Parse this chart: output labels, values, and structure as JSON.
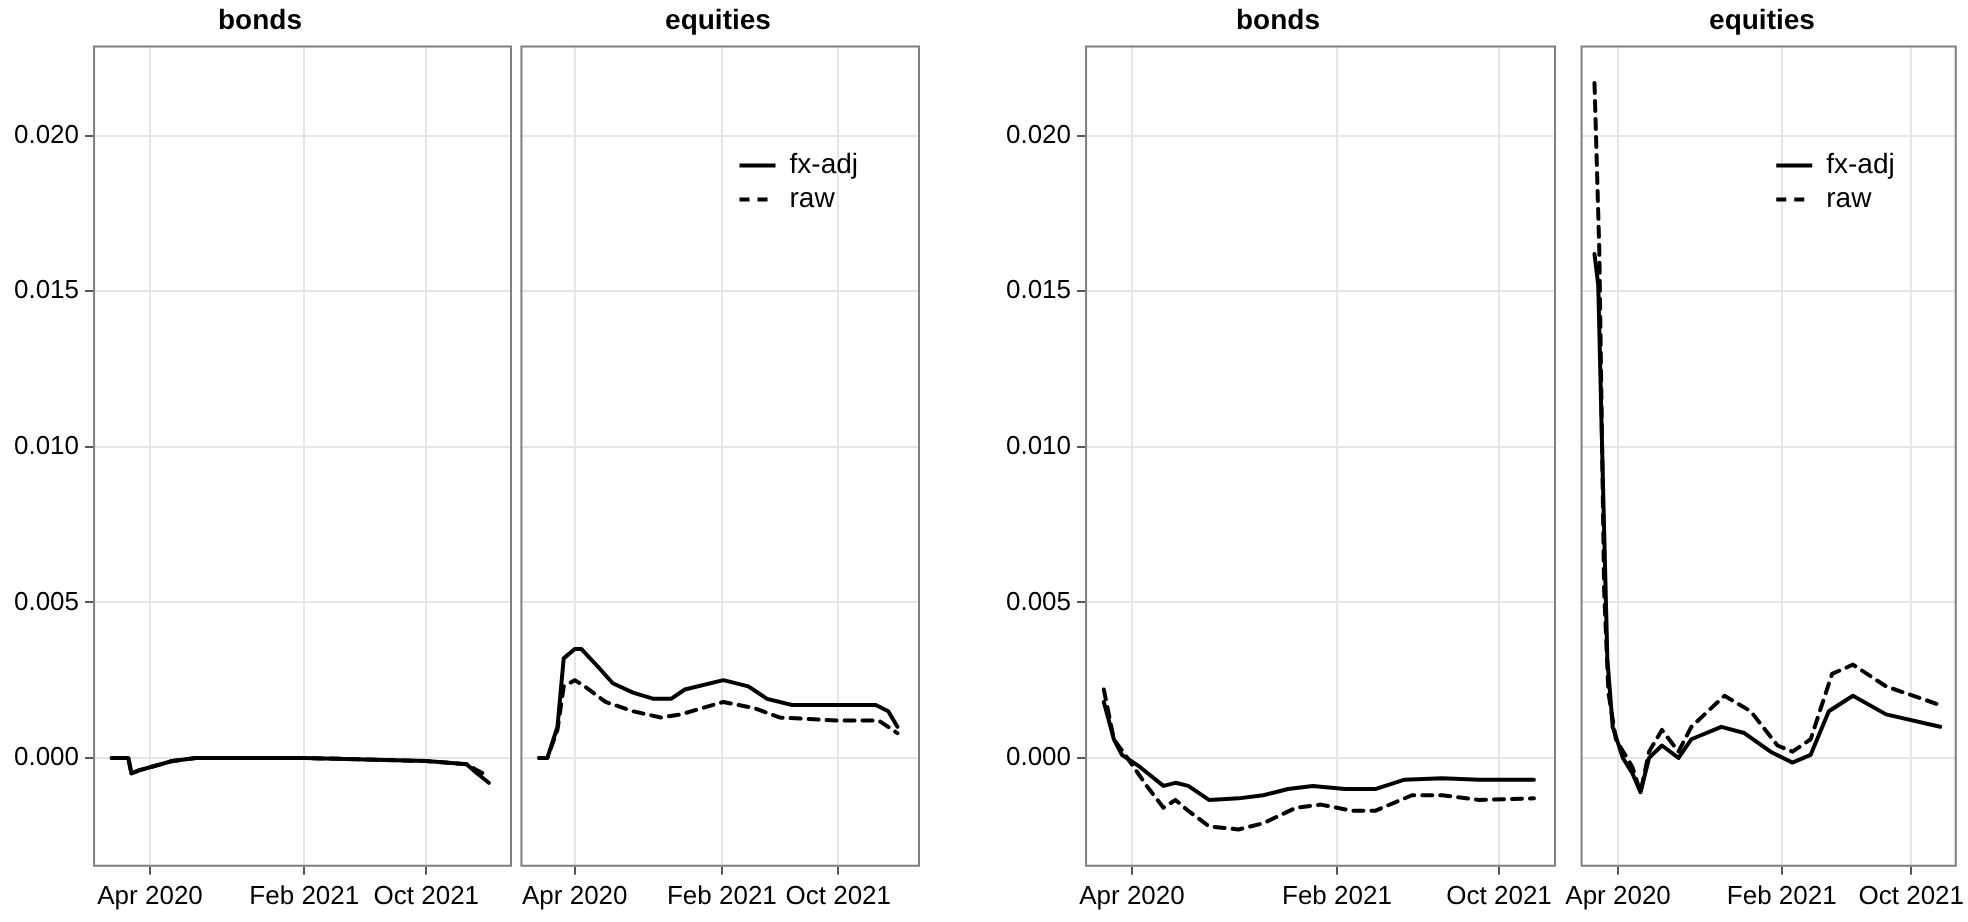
{
  "chart_data": [
    {
      "type": "line",
      "title": "bonds",
      "xlim": [
        "2019-12-10",
        "2022-03-20"
      ],
      "xticks": [
        {
          "value": "2020-04-01",
          "label": "Apr 2020"
        },
        {
          "value": "2021-02-01",
          "label": "Feb 2021"
        },
        {
          "value": "2021-10-01",
          "label": "Oct 2021"
        }
      ],
      "ylim": [
        -0.0035,
        0.0229
      ],
      "yticks": [
        {
          "value": 0,
          "label": "0.000"
        },
        {
          "value": 0.005,
          "label": "0.005"
        },
        {
          "value": 0.01,
          "label": "0.010"
        },
        {
          "value": 0.015,
          "label": "0.015"
        },
        {
          "value": 0.02,
          "label": "0.020"
        }
      ],
      "grid": true,
      "legend": false,
      "series": [
        {
          "color": "#000000",
          "line_style": "solid",
          "x": [
            "2020-01-16",
            "2020-02-18",
            "2020-02-24",
            "2020-03-10",
            "2020-04-01",
            "2020-05-15",
            "2020-07-01",
            "2021-02-01",
            "2021-10-01",
            "2021-12-20",
            "2022-01-10",
            "2022-02-02"
          ],
          "values": [
            0,
            0,
            -0.0005,
            -0.0004,
            -0.0003,
            -0.0001,
            0,
            0,
            -0.0001,
            -0.0002,
            -0.0005,
            -0.0008
          ]
        },
        {
          "color": "#000000",
          "line_style": "dashed",
          "x": [
            "2020-01-16",
            "2020-02-18",
            "2020-02-24",
            "2020-03-10",
            "2020-04-01",
            "2020-05-15",
            "2020-07-01",
            "2021-02-01",
            "2021-10-01",
            "2021-12-20",
            "2022-01-10",
            "2022-02-02"
          ],
          "values": [
            0,
            0,
            -0.0005,
            -0.0004,
            -0.0003,
            -0.0001,
            0,
            0,
            -0.0001,
            -0.0002,
            -0.0004,
            -0.0006
          ]
        }
      ]
    },
    {
      "type": "line",
      "title": "equities",
      "xlim": [
        "2019-12-10",
        "2022-03-20"
      ],
      "xticks": [
        {
          "value": "2020-04-01",
          "label": "Apr 2020"
        },
        {
          "value": "2021-02-01",
          "label": "Feb 2021"
        },
        {
          "value": "2021-10-01",
          "label": "Oct 2021"
        }
      ],
      "ylim": [
        -0.0035,
        0.0229
      ],
      "yticks": [
        0,
        0.005,
        0.01,
        0.015,
        0.02
      ],
      "tick_labels": "x",
      "grid": true,
      "legend": "top right",
      "series": [
        {
          "name": "fx-adj",
          "color": "#000000",
          "line_style": "solid",
          "x": [
            "2020-01-18",
            "2020-02-04",
            "2020-02-25",
            "2020-03-09",
            "2020-04-01",
            "2020-04-15",
            "2020-05-21",
            "2020-06-19",
            "2020-07-31",
            "2020-09-12",
            "2020-10-18",
            "2020-11-16",
            "2021-02-04",
            "2021-03-28",
            "2021-05-06",
            "2021-06-27",
            "2021-10-01",
            "2021-12-18",
            "2022-01-13",
            "2022-02-01"
          ],
          "values": [
            0,
            0,
            0.001,
            0.0032,
            0.0035,
            0.0035,
            0.0029,
            0.0024,
            0.0021,
            0.0019,
            0.0019,
            0.0022,
            0.0025,
            0.0023,
            0.0019,
            0.0017,
            0.0017,
            0.0017,
            0.0015,
            0.001
          ]
        },
        {
          "name": "raw",
          "color": "#000000",
          "line_style": "dashed",
          "x": [
            "2020-01-18",
            "2020-02-04",
            "2020-02-25",
            "2020-03-09",
            "2020-04-01",
            "2020-04-22",
            "2020-06-04",
            "2020-07-31",
            "2020-09-27",
            "2020-11-08",
            "2021-02-04",
            "2021-04-10",
            "2021-06-01",
            "2021-10-01",
            "2021-12-24",
            "2022-02-01"
          ],
          "values": [
            0,
            0,
            0.0009,
            0.0023,
            0.0025,
            0.0023,
            0.0018,
            0.0015,
            0.0013,
            0.0014,
            0.0018,
            0.0016,
            0.0013,
            0.0012,
            0.0012,
            0.0008
          ]
        }
      ]
    },
    {
      "type": "line",
      "title": "bonds",
      "xlim": [
        "2020-01-22",
        "2021-12-25"
      ],
      "xticks": [
        {
          "value": "2020-04-01",
          "label": "Apr 2020"
        },
        {
          "value": "2021-02-01",
          "label": "Feb 2021"
        },
        {
          "value": "2021-10-01",
          "label": "Oct 2021"
        }
      ],
      "ylim": [
        -0.0035,
        0.0229
      ],
      "yticks": [
        {
          "value": 0,
          "label": "0.000"
        },
        {
          "value": 0.005,
          "label": "0.005"
        },
        {
          "value": 0.01,
          "label": "0.010"
        },
        {
          "value": 0.015,
          "label": "0.015"
        },
        {
          "value": 0.02,
          "label": "0.020"
        }
      ],
      "grid": true,
      "legend": false,
      "series": [
        {
          "color": "#000000",
          "line_style": "solid",
          "x": [
            "2020-02-19",
            "2020-03-05",
            "2020-03-17",
            "2020-04-11",
            "2020-05-18",
            "2020-06-05",
            "2020-06-24",
            "2020-07-25",
            "2020-09-07",
            "2020-10-14",
            "2020-11-20",
            "2020-12-27",
            "2021-02-13",
            "2021-03-30",
            "2021-05-13",
            "2021-07-08",
            "2021-09-01",
            "2021-11-22"
          ],
          "values": [
            0.0018,
            0.0006,
            0.0001,
            -0.00026,
            -0.0009,
            -0.0008,
            -0.0009,
            -0.00135,
            -0.0013,
            -0.0012,
            -0.001,
            -0.0009,
            -0.001,
            -0.001,
            -0.0007,
            -0.00065,
            -0.0007,
            -0.0007
          ]
        },
        {
          "color": "#000000",
          "line_style": "dashed",
          "x": [
            "2020-02-19",
            "2020-03-05",
            "2020-03-30",
            "2020-04-23",
            "2020-05-18",
            "2020-06-05",
            "2020-06-24",
            "2020-07-25",
            "2020-09-07",
            "2020-10-14",
            "2020-12-02",
            "2021-01-08",
            "2021-02-24",
            "2021-03-30",
            "2021-05-24",
            "2021-07-08",
            "2021-09-01",
            "2021-11-22"
          ],
          "values": [
            0.0022,
            0.0006,
            -0.00015,
            -0.0009,
            -0.0016,
            -0.00135,
            -0.0017,
            -0.0022,
            -0.0023,
            -0.0021,
            -0.0016,
            -0.0015,
            -0.0017,
            -0.0017,
            -0.0012,
            -0.0012,
            -0.00135,
            -0.0013
          ]
        }
      ]
    },
    {
      "type": "line",
      "title": "equities",
      "xlim": [
        "2020-01-22",
        "2021-12-25"
      ],
      "xticks": [
        {
          "value": "2020-04-01",
          "label": "Apr 2020"
        },
        {
          "value": "2021-02-01",
          "label": "Feb 2021"
        },
        {
          "value": "2021-10-01",
          "label": "Oct 2021"
        }
      ],
      "ylim": [
        -0.0035,
        0.0229
      ],
      "yticks": [
        0,
        0.005,
        0.01,
        0.015,
        0.02
      ],
      "tick_labels": "x",
      "grid": true,
      "legend": "top right",
      "series": [
        {
          "name": "fx-adj",
          "color": "#000000",
          "line_style": "solid",
          "x": [
            "2020-02-17",
            "2020-02-24",
            "2020-03-04",
            "2020-03-12",
            "2020-03-22",
            "2020-04-10",
            "2020-04-28",
            "2020-05-13",
            "2020-05-29",
            "2020-06-22",
            "2020-07-23",
            "2020-08-16",
            "2020-10-11",
            "2020-11-23",
            "2021-01-11",
            "2021-02-21",
            "2021-03-27",
            "2021-04-30",
            "2021-06-14",
            "2021-08-15",
            "2021-11-24"
          ],
          "values": [
            0.0162,
            0.0152,
            0.0087,
            0.0032,
            0.001,
            0,
            -0.0005,
            -0.0011,
            0,
            0.0004,
            0,
            0.0006,
            0.001,
            0.0008,
            0.0002,
            -0.00015,
            0.0001,
            0.0015,
            0.002,
            0.0014,
            0.001
          ]
        },
        {
          "name": "raw",
          "color": "#000000",
          "line_style": "dashed",
          "x": [
            "2020-02-17",
            "2020-02-26",
            "2020-03-06",
            "2020-03-14",
            "2020-03-28",
            "2020-04-28",
            "2020-05-13",
            "2020-05-29",
            "2020-06-22",
            "2020-07-23",
            "2020-08-16",
            "2020-10-17",
            "2020-12-05",
            "2021-01-24",
            "2021-02-21",
            "2021-03-27",
            "2021-05-06",
            "2021-06-14",
            "2021-08-15",
            "2021-11-24"
          ],
          "values": [
            0.0217,
            0.0163,
            0.0054,
            0.0021,
            0.0006,
            -0.0003,
            -0.0011,
            0.0002,
            0.0009,
            0.0002,
            0.001,
            0.002,
            0.0015,
            0.0004,
            0.0002,
            0.0006,
            0.0027,
            0.003,
            0.0023,
            0.0017
          ]
        }
      ]
    }
  ]
}
